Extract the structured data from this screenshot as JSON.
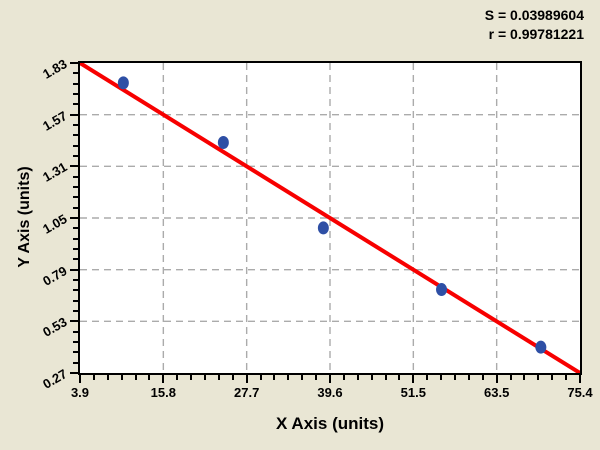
{
  "stats": {
    "s_line": "S = 0.03989604",
    "r_line": "r = 0.99781221"
  },
  "chart_data": {
    "type": "scatter",
    "title": "",
    "xlabel": "X Axis (units)",
    "ylabel": "Y Axis (units)",
    "xlim": [
      3.9,
      75.4
    ],
    "ylim": [
      0.27,
      1.83
    ],
    "xtick_labels": [
      "3.9",
      "15.8",
      "27.7",
      "39.6",
      "51.5",
      "63.5",
      "75.4"
    ],
    "ytick_labels": [
      "0.27",
      "0.53",
      "0.79",
      "1.05",
      "1.31",
      "1.57",
      "1.83"
    ],
    "x_minor_divisions_per_major": 6,
    "y_minor_divisions_per_major": 5,
    "grid": "dashed gray at every major tick",
    "legend": "none",
    "points": [
      [
        10.1,
        1.73
      ],
      [
        24.4,
        1.43
      ],
      [
        38.7,
        1.0
      ],
      [
        55.6,
        0.69
      ],
      [
        69.8,
        0.4
      ]
    ],
    "fit_line": {
      "x": [
        3.9,
        75.4
      ],
      "y": [
        1.83,
        0.27
      ]
    },
    "colors": {
      "page_bg": "#E9E6D4",
      "plot_bg": "#FFFFFF",
      "frame": "#000000",
      "grid": "#ABABAB",
      "fit_line": "#F70000",
      "point": "#2E4FA5",
      "text": "#000000"
    }
  }
}
